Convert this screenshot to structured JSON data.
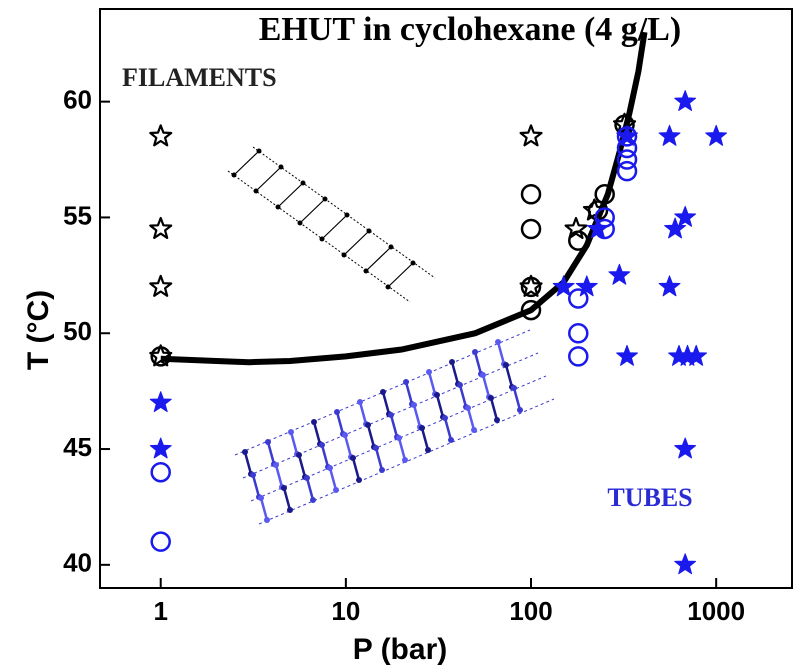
{
  "chart_data": {
    "type": "scatter",
    "title": "EHUT in cyclohexane (4 g/L)",
    "x_label": "P (bar)",
    "y_label": "T (°C)",
    "log_x": true,
    "xlim": [
      0.47,
      2600
    ],
    "ylim": [
      39,
      64
    ],
    "xticks": [
      1,
      10,
      100,
      1000
    ],
    "yticks": [
      40,
      45,
      50,
      55,
      60
    ],
    "annotations": [
      {
        "text": "FILAMENTS",
        "color": "#222222"
      },
      {
        "text": "TUBES",
        "color": "#2b2bd6"
      }
    ],
    "series": [
      {
        "marker": "line",
        "color": "#000000",
        "x": [
          1,
          2,
          3,
          5,
          10,
          20,
          50,
          100,
          150,
          200,
          260,
          300,
          340,
          380,
          410
        ],
        "values": [
          48.9,
          48.8,
          48.75,
          48.8,
          49.0,
          49.3,
          50.0,
          51.0,
          52.2,
          53.8,
          56.0,
          57.8,
          59.5,
          61.3,
          63.0
        ]
      },
      {
        "marker": "circle",
        "filled": false,
        "color": "#000000",
        "x": [
          1,
          100,
          100,
          100,
          100,
          180,
          230,
          250,
          320
        ],
        "values": [
          49,
          56,
          54.5,
          52,
          51,
          54,
          55.3,
          56,
          59
        ]
      },
      {
        "marker": "star",
        "filled": false,
        "color": "#000000",
        "x": [
          1,
          1,
          1,
          1,
          100,
          100,
          175,
          220,
          320
        ],
        "values": [
          58.5,
          54.5,
          52,
          49,
          58.5,
          52,
          54.5,
          55.3,
          59
        ]
      },
      {
        "marker": "circle",
        "filled": false,
        "color": "#1a1aee",
        "x": [
          1,
          1,
          180,
          180,
          180,
          330,
          330,
          330,
          330,
          250,
          250
        ],
        "values": [
          44,
          41,
          51.5,
          50,
          49,
          57,
          57.5,
          58,
          58.5,
          55,
          54.5
        ]
      },
      {
        "marker": "star",
        "filled": true,
        "color": "#1a1aee",
        "x": [
          1,
          1,
          150,
          200,
          230,
          300,
          330,
          330,
          560,
          1000,
          600,
          680,
          560,
          680,
          630,
          700,
          780,
          680,
          680
        ],
        "values": [
          47,
          45,
          52,
          52,
          54.5,
          52.5,
          49,
          58.5,
          58.5,
          58.5,
          54.5,
          55,
          52,
          60,
          49,
          49,
          49,
          45,
          40
        ]
      }
    ]
  }
}
